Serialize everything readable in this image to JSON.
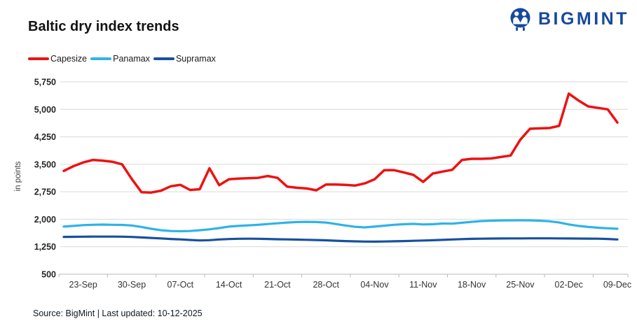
{
  "logo": {
    "brand": "BIGMINT",
    "icon": "bigmint-emblem-icon",
    "color": "#17499E"
  },
  "header": {
    "title": "Baltic dry index trends"
  },
  "legend": [
    {
      "label": "Capesize",
      "color": "#ED1212"
    },
    {
      "label": "Panamax",
      "color": "#2FB3E8"
    },
    {
      "label": "Supramax",
      "color": "#17519E"
    }
  ],
  "footer": {
    "source_text": "Source: BigMint | Last updated: 10-12-2025"
  },
  "chart_data": {
    "type": "line",
    "title": "Baltic dry index trends",
    "xlabel": "",
    "ylabel": "in points",
    "ylim": [
      500,
      5750
    ],
    "y_ticks": [
      500,
      1250,
      2000,
      2750,
      3500,
      4250,
      5000,
      5750
    ],
    "grid": true,
    "legend_position": "top-left",
    "x_tick_labels": [
      "23-Sep",
      "30-Sep",
      "07-Oct",
      "14-Oct",
      "21-Oct",
      "28-Oct",
      "04-Nov",
      "11-Nov",
      "18-Nov",
      "25-Nov",
      "02-Dec",
      "09-Dec"
    ],
    "x_tick_start": 2,
    "x_tick_step": 5,
    "x": [
      "19-Sep",
      "22-Sep",
      "23-Sep",
      "24-Sep",
      "25-Sep",
      "26-Sep",
      "29-Sep",
      "30-Sep",
      "01-Oct",
      "02-Oct",
      "03-Oct",
      "06-Oct",
      "07-Oct",
      "08-Oct",
      "09-Oct",
      "10-Oct",
      "13-Oct",
      "14-Oct",
      "15-Oct",
      "16-Oct",
      "17-Oct",
      "20-Oct",
      "21-Oct",
      "22-Oct",
      "23-Oct",
      "24-Oct",
      "27-Oct",
      "28-Oct",
      "29-Oct",
      "30-Oct",
      "31-Oct",
      "03-Nov",
      "04-Nov",
      "05-Nov",
      "06-Nov",
      "07-Nov",
      "10-Nov",
      "11-Nov",
      "12-Nov",
      "13-Nov",
      "14-Nov",
      "17-Nov",
      "18-Nov",
      "19-Nov",
      "20-Nov",
      "21-Nov",
      "24-Nov",
      "25-Nov",
      "26-Nov",
      "27-Nov",
      "28-Nov",
      "01-Dec",
      "02-Dec",
      "03-Dec",
      "04-Dec",
      "05-Dec",
      "08-Dec",
      "09-Dec"
    ],
    "series": [
      {
        "name": "Capesize",
        "color": "#ED1212",
        "values": [
          3320,
          3450,
          3550,
          3620,
          3600,
          3570,
          3500,
          3100,
          2740,
          2730,
          2780,
          2900,
          2940,
          2800,
          2820,
          3390,
          2930,
          3090,
          3110,
          3120,
          3130,
          3180,
          3130,
          2890,
          2860,
          2840,
          2790,
          2950,
          2950,
          2940,
          2920,
          2980,
          3090,
          3340,
          3340,
          3280,
          3210,
          3020,
          3250,
          3300,
          3350,
          3620,
          3650,
          3650,
          3660,
          3700,
          3740,
          4170,
          4470,
          4480,
          4490,
          4550,
          5430,
          5240,
          5080,
          5040,
          5000,
          4640
        ]
      },
      {
        "name": "Panamax",
        "color": "#2FB3E8",
        "values": [
          1800,
          1820,
          1840,
          1850,
          1855,
          1850,
          1845,
          1830,
          1790,
          1740,
          1700,
          1680,
          1675,
          1680,
          1700,
          1725,
          1760,
          1800,
          1820,
          1835,
          1850,
          1870,
          1890,
          1910,
          1925,
          1930,
          1925,
          1910,
          1870,
          1830,
          1795,
          1780,
          1800,
          1825,
          1850,
          1865,
          1875,
          1860,
          1865,
          1885,
          1880,
          1905,
          1930,
          1950,
          1960,
          1968,
          1970,
          1972,
          1970,
          1960,
          1945,
          1910,
          1860,
          1820,
          1790,
          1770,
          1755,
          1740
        ]
      },
      {
        "name": "Supramax",
        "color": "#17519E",
        "values": [
          1520,
          1522,
          1525,
          1527,
          1528,
          1527,
          1525,
          1518,
          1505,
          1490,
          1478,
          1462,
          1450,
          1435,
          1422,
          1430,
          1448,
          1460,
          1468,
          1470,
          1468,
          1462,
          1455,
          1450,
          1445,
          1440,
          1433,
          1425,
          1415,
          1405,
          1398,
          1392,
          1390,
          1394,
          1400,
          1405,
          1412,
          1420,
          1428,
          1438,
          1448,
          1458,
          1466,
          1470,
          1473,
          1475,
          1477,
          1478,
          1480,
          1480,
          1480,
          1478,
          1476,
          1474,
          1472,
          1470,
          1462,
          1448
        ]
      }
    ]
  }
}
